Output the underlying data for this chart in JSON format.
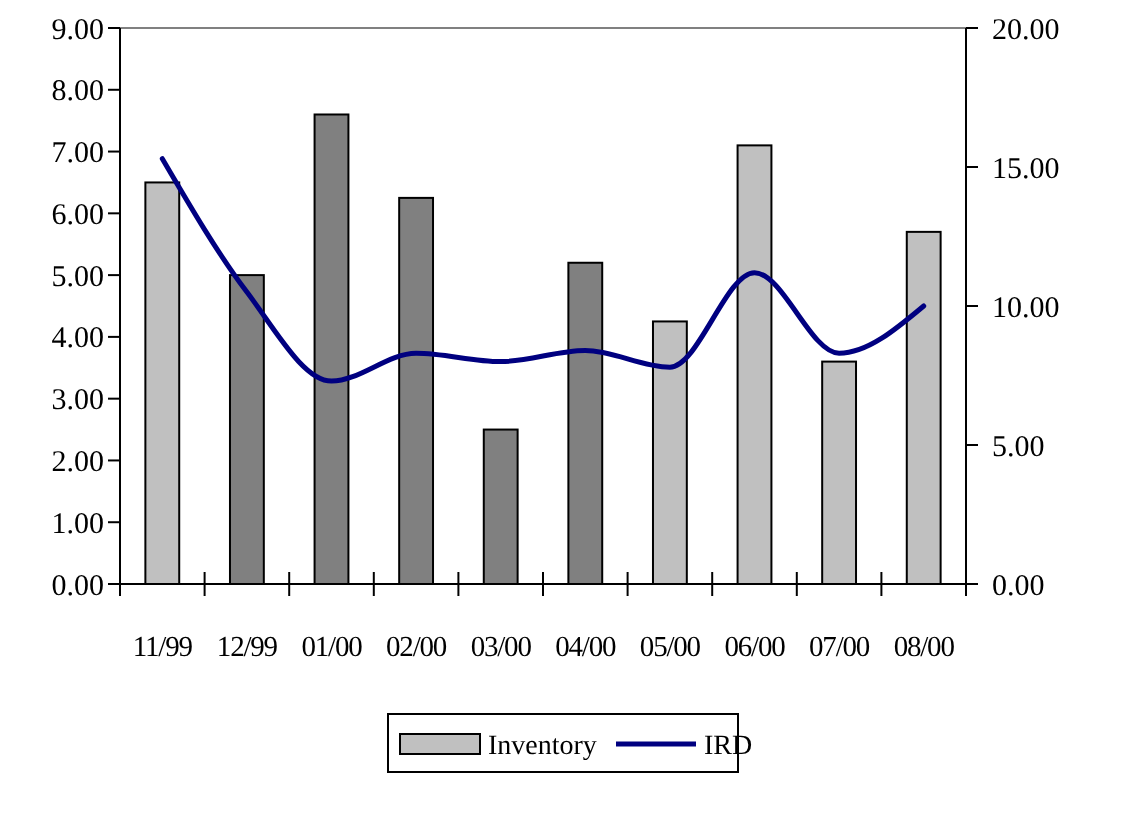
{
  "chart_data": {
    "type": "bar",
    "categories": [
      "11/99",
      "12/99",
      "01/00",
      "02/00",
      "03/00",
      "04/00",
      "05/00",
      "06/00",
      "07/00",
      "08/00"
    ],
    "series": [
      {
        "name": "Inventory",
        "color": "#c0c0c0",
        "colors": [
          "#c0c0c0",
          "#808080",
          "#808080",
          "#808080",
          "#808080",
          "#808080",
          "#c0c0c0",
          "#c0c0c0",
          "#c0c0c0",
          "#c0c0c0"
        ],
        "values": [
          6.5,
          5.0,
          7.6,
          6.25,
          2.5,
          5.2,
          4.25,
          7.1,
          3.6,
          5.7
        ]
      },
      {
        "name": "IRD",
        "type": "line",
        "axis": "y2",
        "color": "#000080",
        "values": [
          15.3,
          10.5,
          7.3,
          8.3,
          8.0,
          8.4,
          7.8,
          11.2,
          8.3,
          10.0
        ]
      }
    ],
    "ylim": [
      0,
      9
    ],
    "yticks": [
      {
        "value": 0,
        "label": "0.00"
      },
      {
        "value": 1,
        "label": "1.00"
      },
      {
        "value": 2,
        "label": "2.00"
      },
      {
        "value": 3,
        "label": "3.00"
      },
      {
        "value": 4,
        "label": "4.00"
      },
      {
        "value": 5,
        "label": "5.00"
      },
      {
        "value": 6,
        "label": "6.00"
      },
      {
        "value": 7,
        "label": "7.00"
      },
      {
        "value": 8,
        "label": "8.00"
      },
      {
        "value": 9,
        "label": "9.00"
      }
    ],
    "y2lim": [
      0,
      20
    ],
    "y2ticks": [
      {
        "value": 0,
        "label": "0.00"
      },
      {
        "value": 5,
        "label": "5.00"
      },
      {
        "value": 10,
        "label": "10.00"
      },
      {
        "value": 15,
        "label": "15.00"
      },
      {
        "value": 20,
        "label": "20.00"
      }
    ],
    "legend": "bottom",
    "marker": "none",
    "line_style": "solid"
  }
}
